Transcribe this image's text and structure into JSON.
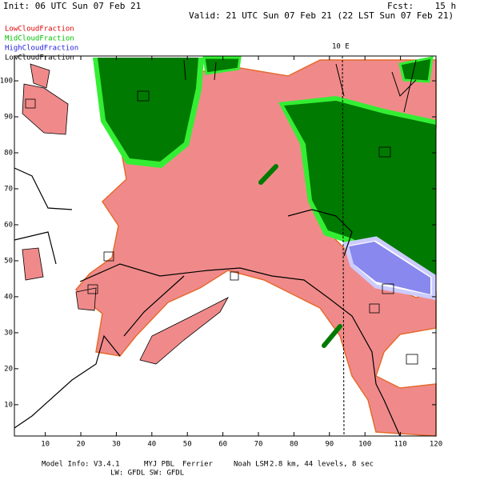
{
  "header": {
    "init": "Init: 06 UTC Sun 07 Feb 21",
    "forecast": "Fcst:    15 h",
    "valid": "Valid: 21 UTC Sun 07 Feb 21 (22 LST Sun 07 Feb 21)"
  },
  "legend": [
    {
      "name": "LowCloudFraction",
      "color": "#e00000"
    },
    {
      "name": "MidCloudFraction",
      "color": "#00c000"
    },
    {
      "name": "HighCloudFraction",
      "color": "#2020e0"
    },
    {
      "name": "LowCloudFraction",
      "color": "#000000"
    }
  ],
  "map": {
    "meridian_label": "10 E",
    "xlim": [
      1.3,
      120
    ],
    "ylim": [
      1.3,
      106.9
    ],
    "xticks": [
      10,
      20,
      30,
      40,
      50,
      60,
      70,
      80,
      90,
      100,
      110,
      120
    ],
    "yticks": [
      10,
      20,
      30,
      40,
      50,
      60,
      70,
      80,
      90,
      100
    ]
  },
  "footer": {
    "model_info": "Model Info: V3.4.1",
    "pbl": "MYJ PBL",
    "microphysics": "Ferrier",
    "lsm": "Noah LSM",
    "resolution": "2.8 km, 44 levels, 8 sec",
    "radiation": "LW: GFDL SW: GFDL"
  }
}
